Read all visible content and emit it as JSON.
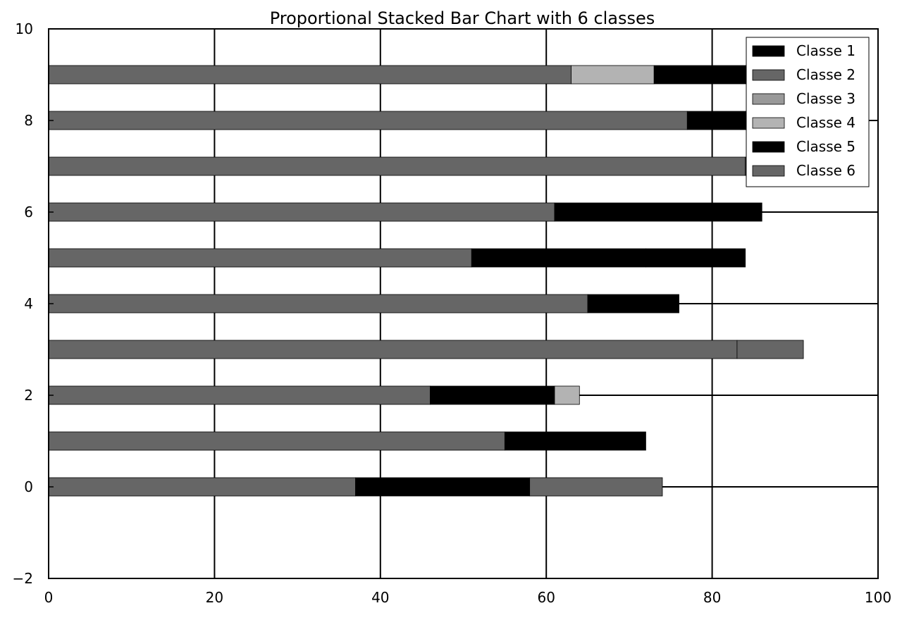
{
  "chart_data": {
    "type": "bar",
    "orientation": "horizontal",
    "stacked": true,
    "title": "Proportional Stacked Bar Chart with 6 classes",
    "xlabel": "",
    "ylabel": "",
    "xlim": [
      0,
      100
    ],
    "ylim": [
      -2,
      10
    ],
    "xticks": [
      0,
      20,
      40,
      60,
      80,
      100
    ],
    "yticks": [
      -2,
      0,
      2,
      4,
      6,
      8,
      10
    ],
    "ytick_labels": [
      "−2",
      "0",
      "2",
      "4",
      "6",
      "8",
      "10"
    ],
    "grid": true,
    "legend_position": "top-right",
    "categories": [
      0,
      1,
      2,
      3,
      4,
      5,
      6,
      7,
      8,
      9
    ],
    "series": [
      {
        "name": "Classe 1",
        "color": "#000000",
        "values": [
          0,
          0,
          0,
          0,
          0,
          0,
          0,
          0,
          0,
          0
        ]
      },
      {
        "name": "Classe 2",
        "color": "#666666",
        "values": [
          0,
          0,
          0,
          0,
          0,
          0,
          0,
          0,
          0,
          0
        ]
      },
      {
        "name": "Classe 3",
        "color": "#999999",
        "values": [
          0,
          0,
          0,
          0,
          0,
          0,
          0,
          0,
          0,
          0
        ]
      },
      {
        "name": "Classe 4",
        "color": "#b3b3b3",
        "values": [
          0,
          0,
          0,
          0,
          0,
          0,
          0,
          0,
          0,
          0
        ]
      },
      {
        "name": "Classe 5",
        "color": "#000000",
        "values": [
          0,
          0,
          0,
          0,
          0,
          0,
          0,
          0,
          0,
          0
        ]
      },
      {
        "name": "Classe 6",
        "color": "#666666",
        "values": [
          0,
          0,
          0,
          0,
          0,
          0,
          0,
          0,
          0,
          0
        ]
      }
    ],
    "bar_segments": [
      [
        {
          "c": 6,
          "v": 37
        },
        {
          "c": 5,
          "v": 21
        },
        {
          "c": 6,
          "v": 16
        }
      ],
      [
        {
          "c": 6,
          "v": 55
        },
        {
          "c": 5,
          "v": 17
        }
      ],
      [
        {
          "c": 6,
          "v": 46
        },
        {
          "c": 5,
          "v": 15
        },
        {
          "c": 4,
          "v": 3
        }
      ],
      [
        {
          "c": 6,
          "v": 83
        },
        {
          "c": 6,
          "v": 8
        }
      ],
      [
        {
          "c": 6,
          "v": 65
        },
        {
          "c": 5,
          "v": 11
        }
      ],
      [
        {
          "c": 6,
          "v": 51
        },
        {
          "c": 5,
          "v": 21
        },
        {
          "c": 5,
          "v": 12
        }
      ],
      [
        {
          "c": 6,
          "v": 61
        },
        {
          "c": 5,
          "v": 25
        }
      ],
      [
        {
          "c": 6,
          "v": 84
        },
        {
          "c": 6,
          "v": 8
        }
      ],
      [
        {
          "c": 6,
          "v": 77
        },
        {
          "c": 5,
          "v": 14
        }
      ],
      [
        {
          "c": 6,
          "v": 63
        },
        {
          "c": 4,
          "v": 10
        },
        {
          "c": 5,
          "v": 22
        }
      ]
    ]
  }
}
